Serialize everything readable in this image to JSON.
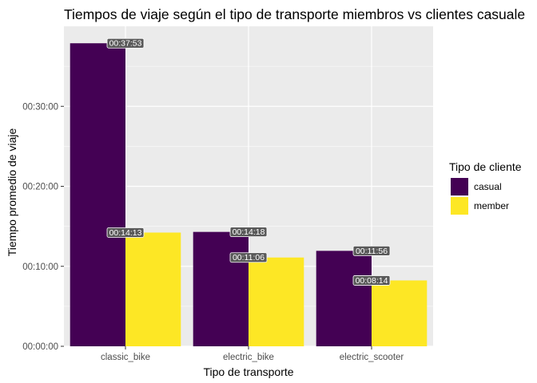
{
  "chart_data": {
    "type": "bar",
    "title": "Tiempos de viaje según el tipo de transporte miembros vs clientes casuale",
    "xlabel": "Tipo de transporte",
    "ylabel": "Tiempo promedio de viaje",
    "categories": [
      "classic_bike",
      "electric_bike",
      "electric_scooter"
    ],
    "y_unit": "seconds",
    "ylim": [
      0,
      2400
    ],
    "y_ticks": [
      {
        "value": 0,
        "label": "00:00:00"
      },
      {
        "value": 600,
        "label": "00:10:00"
      },
      {
        "value": 1200,
        "label": "00:20:00"
      },
      {
        "value": 1800,
        "label": "00:30:00"
      }
    ],
    "series": [
      {
        "name": "casual",
        "color": "#440154",
        "values": [
          2273,
          858,
          716
        ],
        "labels": [
          "00:37:53",
          "00:14:18",
          "00:11:56"
        ]
      },
      {
        "name": "member",
        "color": "#fde725",
        "values": [
          853,
          666,
          494
        ],
        "labels": [
          "00:14:13",
          "00:11:06",
          "00:08:14"
        ]
      }
    ],
    "grid": true,
    "panel_background": "#ebebeb",
    "legend": {
      "title": "Tipo de cliente",
      "position": "right"
    }
  }
}
